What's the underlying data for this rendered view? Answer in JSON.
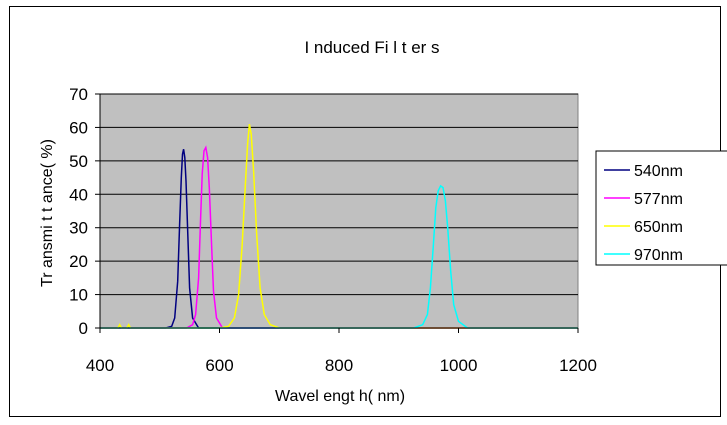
{
  "chart_data": {
    "type": "line",
    "title": "I nduced Fi l t er s",
    "xlabel": "Wavel engt h( nm)",
    "ylabel": "Tr ansmi t t ance( %)",
    "xlim": [
      400,
      1200
    ],
    "ylim": [
      0,
      70
    ],
    "xticks": [
      400,
      600,
      800,
      1000,
      1200
    ],
    "yticks": [
      0,
      10,
      20,
      30,
      40,
      50,
      60,
      70
    ],
    "xtick_labels": [
      "400",
      "600",
      "800",
      "1000",
      "1200"
    ],
    "ytick_labels": [
      "0",
      "10",
      "20",
      "30",
      "40",
      "50",
      "60",
      "70"
    ],
    "grid": "horizontal",
    "plot_background": "#c0c0c0",
    "legend_position": "right",
    "series": [
      {
        "name": "540nm",
        "color": "#000080",
        "x": [
          400,
          510,
          520,
          525,
          530,
          533,
          536,
          538,
          540,
          542,
          544,
          547,
          550,
          555,
          565,
          1200
        ],
        "y": [
          0,
          0,
          0.5,
          3,
          14,
          30,
          45,
          52,
          53.5,
          51,
          44,
          28,
          12,
          3,
          0,
          0
        ]
      },
      {
        "name": "577nm",
        "color": "#ff00ff",
        "x": [
          400,
          545,
          555,
          560,
          565,
          568,
          571,
          574,
          577,
          580,
          583,
          587,
          590,
          595,
          605,
          1200
        ],
        "y": [
          0,
          0,
          1,
          4,
          15,
          31,
          46,
          53,
          54,
          51,
          42,
          24,
          11,
          3,
          0,
          0
        ]
      },
      {
        "name": "650nm",
        "color": "#ffff00",
        "x": [
          400,
          430,
          433,
          436,
          445,
          448,
          451,
          600,
          615,
          625,
          632,
          638,
          643,
          647,
          650,
          653,
          657,
          662,
          668,
          675,
          685,
          700,
          1200
        ],
        "y": [
          0,
          0,
          1,
          0,
          0,
          1,
          0,
          0,
          0.5,
          3,
          10,
          25,
          42,
          55,
          61,
          58,
          47,
          29,
          12,
          4,
          1,
          0,
          0
        ]
      },
      {
        "name": "970nm",
        "color": "#00ffff",
        "x": [
          400,
          925,
          940,
          948,
          953,
          958,
          962,
          966,
          970,
          974,
          978,
          982,
          987,
          992,
          1000,
          1015,
          1200
        ],
        "y": [
          0,
          0,
          1,
          4,
          12,
          25,
          36,
          41,
          42.5,
          42,
          38,
          30,
          17,
          7,
          2,
          0,
          0
        ]
      }
    ]
  }
}
